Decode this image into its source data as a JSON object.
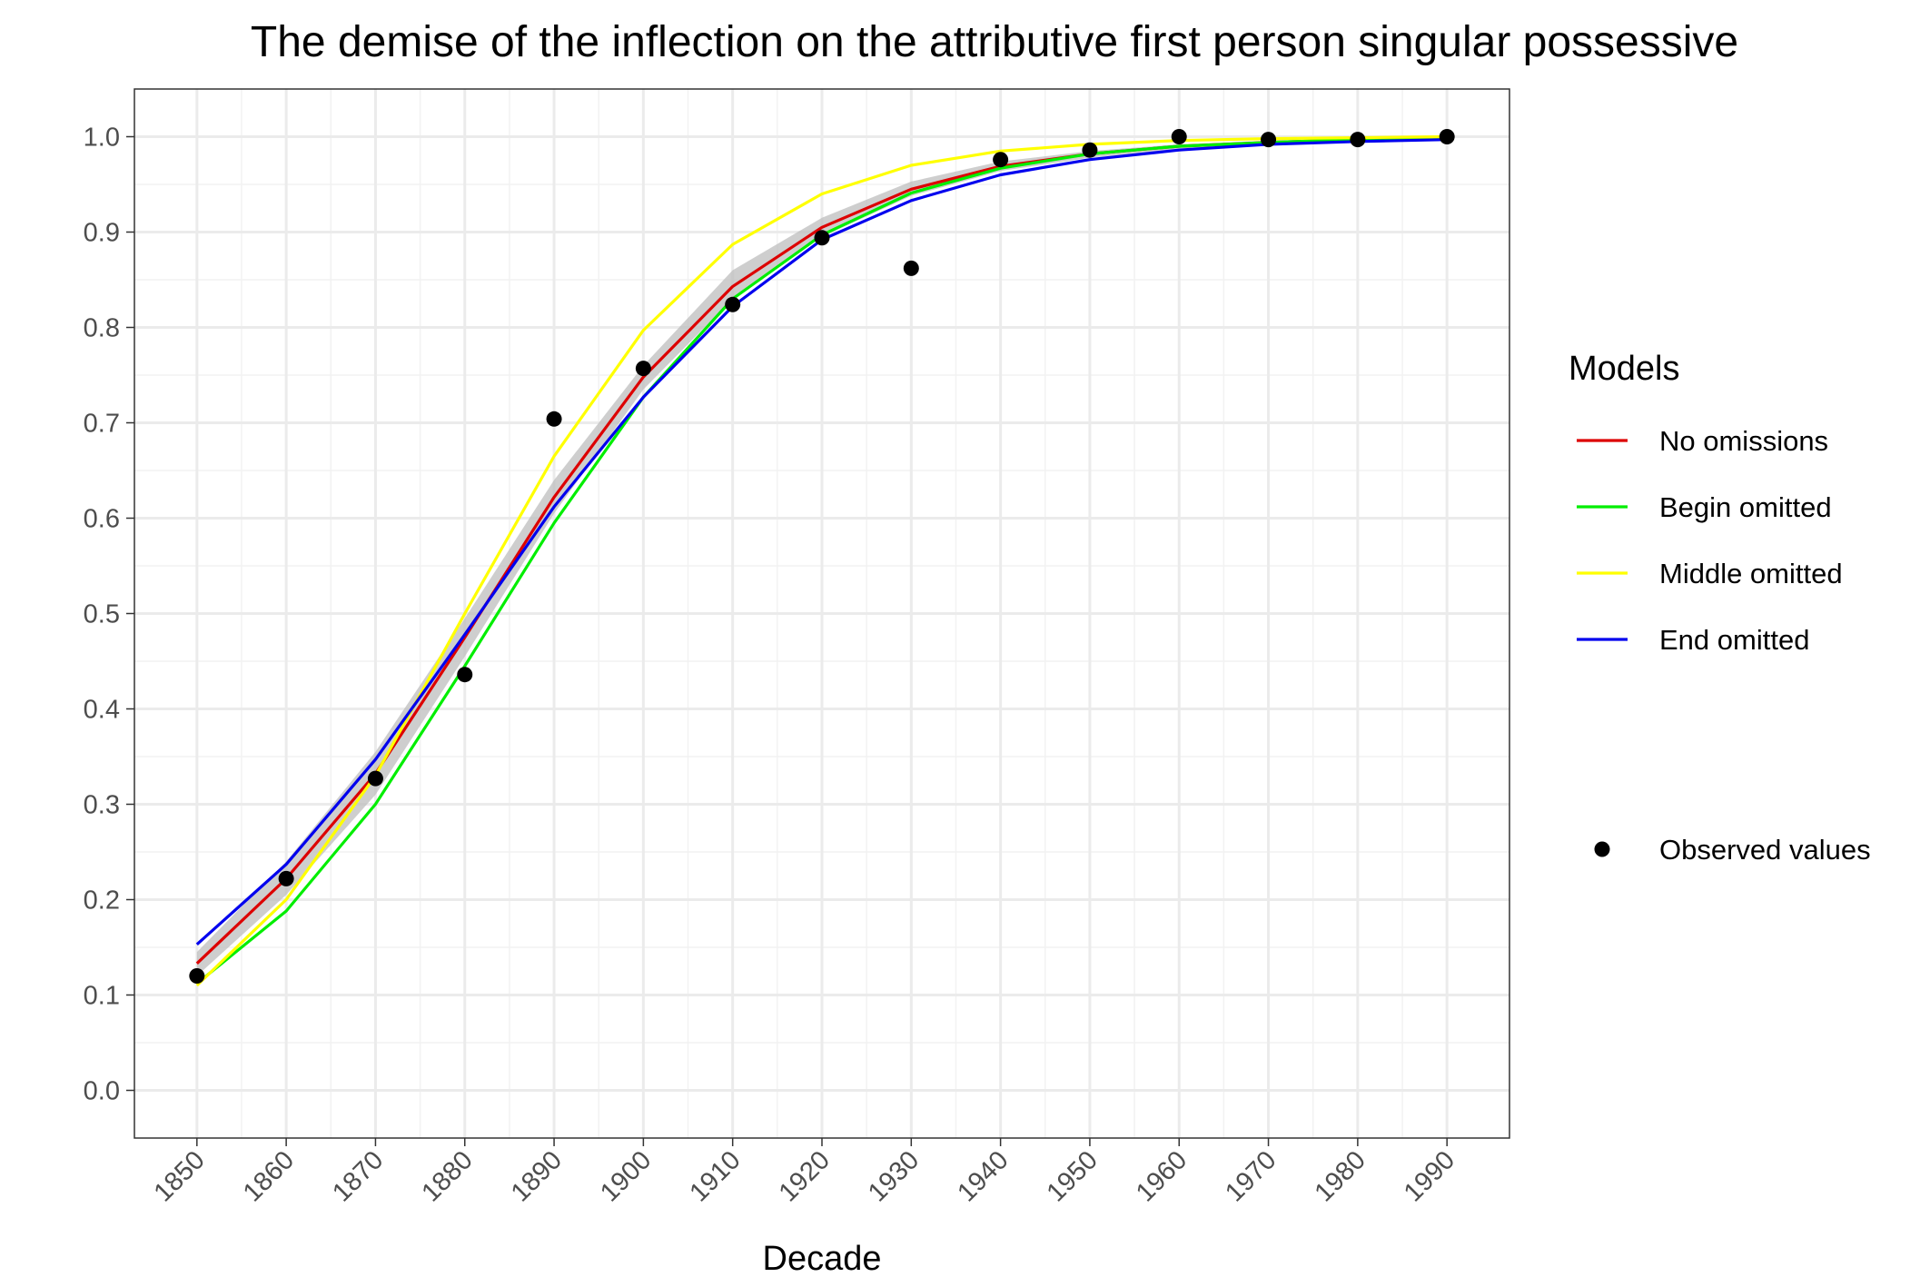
{
  "chart_data": {
    "type": "line",
    "title": "The demise of the inflection on the attributive first person singular possessive",
    "xlabel": "Decade",
    "ylabel": "",
    "x": [
      1850,
      1860,
      1870,
      1880,
      1890,
      1900,
      1910,
      1920,
      1930,
      1940,
      1950,
      1960,
      1970,
      1980,
      1990
    ],
    "xlim": [
      1843,
      1997
    ],
    "ylim": [
      -0.05,
      1.05
    ],
    "yticks": [
      0.0,
      0.1,
      0.2,
      0.3,
      0.4,
      0.5,
      0.6,
      0.7,
      0.8,
      0.9,
      1.0
    ],
    "ytick_labels": [
      "0.0",
      "0.1",
      "0.2",
      "0.3",
      "0.4",
      "0.5",
      "0.6",
      "0.7",
      "0.8",
      "0.9",
      "1.0"
    ],
    "grid": true,
    "legend_title": "Models",
    "legend_position": "right",
    "confidence_band": {
      "color": "#bebebe",
      "lower": [
        0.12,
        0.205,
        0.31,
        0.455,
        0.605,
        0.735,
        0.83,
        0.895,
        0.938,
        0.964,
        0.978,
        0.987,
        0.992,
        0.995,
        0.997
      ],
      "upper": [
        0.145,
        0.24,
        0.355,
        0.495,
        0.64,
        0.76,
        0.86,
        0.915,
        0.953,
        0.974,
        0.985,
        0.992,
        0.996,
        0.998,
        0.999
      ]
    },
    "series": [
      {
        "name": "No omissions",
        "color": "#e41a1c",
        "stroke": "#dd0000",
        "values": [
          0.133,
          0.222,
          0.332,
          0.475,
          0.622,
          0.748,
          0.843,
          0.905,
          0.945,
          0.969,
          0.982,
          0.99,
          0.994,
          0.997,
          0.998
        ]
      },
      {
        "name": "Begin omitted",
        "color": "#00ee00",
        "stroke": "#00ee00",
        "values": [
          0.112,
          0.188,
          0.3,
          0.445,
          0.595,
          0.727,
          0.83,
          0.897,
          0.941,
          0.967,
          0.982,
          0.99,
          0.994,
          0.997,
          0.998
        ]
      },
      {
        "name": "Middle omitted",
        "color": "#ffff00",
        "stroke": "#ffff00",
        "values": [
          0.11,
          0.2,
          0.33,
          0.5,
          0.665,
          0.797,
          0.887,
          0.94,
          0.97,
          0.985,
          0.992,
          0.996,
          0.998,
          0.999,
          1.0
        ]
      },
      {
        "name": "End omitted",
        "color": "#0000ee",
        "stroke": "#0000ee",
        "values": [
          0.153,
          0.237,
          0.347,
          0.478,
          0.612,
          0.727,
          0.822,
          0.892,
          0.933,
          0.96,
          0.976,
          0.986,
          0.992,
          0.995,
          0.997
        ]
      }
    ],
    "observed": {
      "name": "Observed values",
      "color": "#000000",
      "values": [
        0.12,
        0.222,
        0.327,
        0.436,
        0.704,
        0.757,
        0.824,
        0.894,
        0.862,
        0.976,
        0.986,
        1.0,
        0.997,
        0.997,
        1.0
      ]
    }
  }
}
